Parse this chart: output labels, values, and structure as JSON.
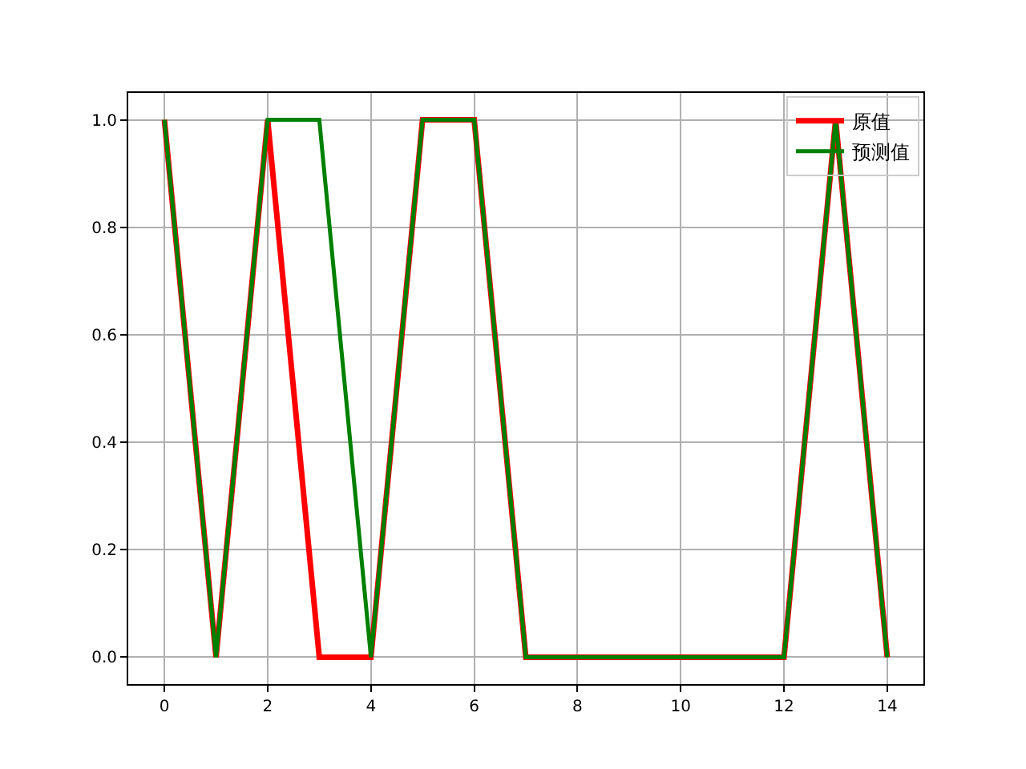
{
  "chart_data": {
    "type": "line",
    "x": [
      0,
      1,
      2,
      3,
      4,
      5,
      6,
      7,
      8,
      9,
      10,
      11,
      12,
      13,
      14
    ],
    "series": [
      {
        "name": "原值",
        "color": "#ff0000",
        "values": [
          1,
          0,
          1,
          0,
          0,
          1,
          1,
          0,
          0,
          0,
          0,
          0,
          0,
          1,
          0
        ]
      },
      {
        "name": "预测值",
        "color": "#008000",
        "values": [
          1,
          0,
          1,
          1,
          0,
          1,
          1,
          0,
          0,
          0,
          0,
          0,
          0,
          1,
          0
        ]
      }
    ],
    "xlim": [
      -0.7,
      14.7
    ],
    "xticks": [
      0,
      2,
      4,
      6,
      8,
      10,
      12,
      14
    ],
    "ylim": [
      -0.05,
      1.05
    ],
    "yticks": [
      {
        "value": 0,
        "label": "0.0"
      },
      {
        "value": 0.2,
        "label": "0.2"
      },
      {
        "value": 0.4,
        "label": "0.4"
      },
      {
        "value": 0.6,
        "label": "0.6"
      },
      {
        "value": 0.8,
        "label": "0.8"
      },
      {
        "value": 1,
        "label": "1.0"
      }
    ],
    "grid": true,
    "legend": "top right",
    "marker": "none",
    "line_style": "solid"
  }
}
